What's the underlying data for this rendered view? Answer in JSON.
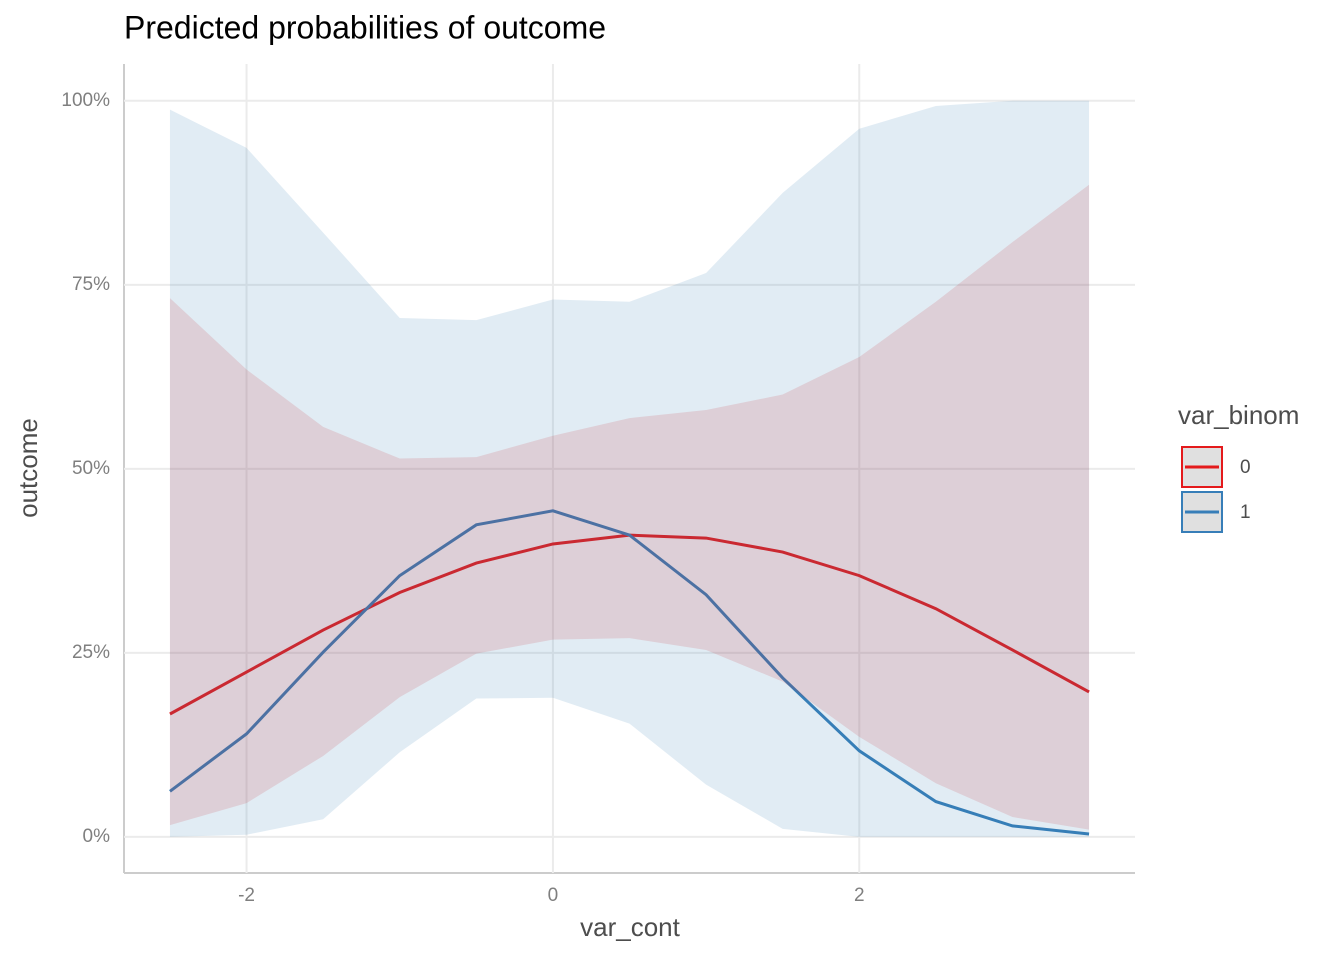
{
  "chart_data": {
    "type": "line",
    "title": "Predicted probabilities of outcome",
    "x_label": "var_cont",
    "y_label": "outcome",
    "legend_title": "var_binom",
    "x": [
      -2.5,
      -2,
      -1.5,
      -1,
      -0.5,
      0,
      0.5,
      1,
      1.5,
      2,
      2.5,
      3,
      3.5
    ],
    "xlim": [
      -2.8,
      3.8
    ],
    "xticks": [
      -2,
      0,
      2
    ],
    "ylim": [
      -4.9,
      105
    ],
    "yticks": [
      {
        "value": 0,
        "label": "0%"
      },
      {
        "value": 25,
        "label": "25%"
      },
      {
        "value": 50,
        "label": "50%"
      },
      {
        "value": 75,
        "label": "75%"
      },
      {
        "value": 100,
        "label": "100%"
      }
    ],
    "grid": true,
    "series": [
      {
        "name": "0",
        "color": "#e41a1c",
        "values": [
          16.7,
          22.4,
          28.1,
          33.2,
          37.2,
          39.8,
          41.0,
          40.6,
          38.7,
          35.5,
          31.0,
          25.4,
          19.7
        ],
        "lower": [
          1.6,
          4.6,
          11.0,
          19.0,
          24.9,
          26.8,
          27.0,
          25.4,
          21.1,
          13.6,
          7.3,
          2.7,
          1.0
        ],
        "upper": [
          73.2,
          63.5,
          55.7,
          51.4,
          51.6,
          54.5,
          56.9,
          58.0,
          60.1,
          65.2,
          72.7,
          80.8,
          88.6
        ]
      },
      {
        "name": "1",
        "color": "#377eb8",
        "values": [
          6.2,
          14.0,
          25.1,
          35.5,
          42.4,
          44.3,
          41.0,
          32.9,
          21.6,
          11.7,
          4.8,
          1.5,
          0.4
        ],
        "lower": [
          0,
          0.3,
          2.4,
          11.5,
          18.8,
          18.9,
          15.4,
          7.1,
          1.1,
          0,
          0,
          0,
          0
        ],
        "upper": [
          98.8,
          93.6,
          82.1,
          70.5,
          70.2,
          73.0,
          72.7,
          76.6,
          87.5,
          96.2,
          99.3,
          100,
          100
        ]
      }
    ]
  }
}
